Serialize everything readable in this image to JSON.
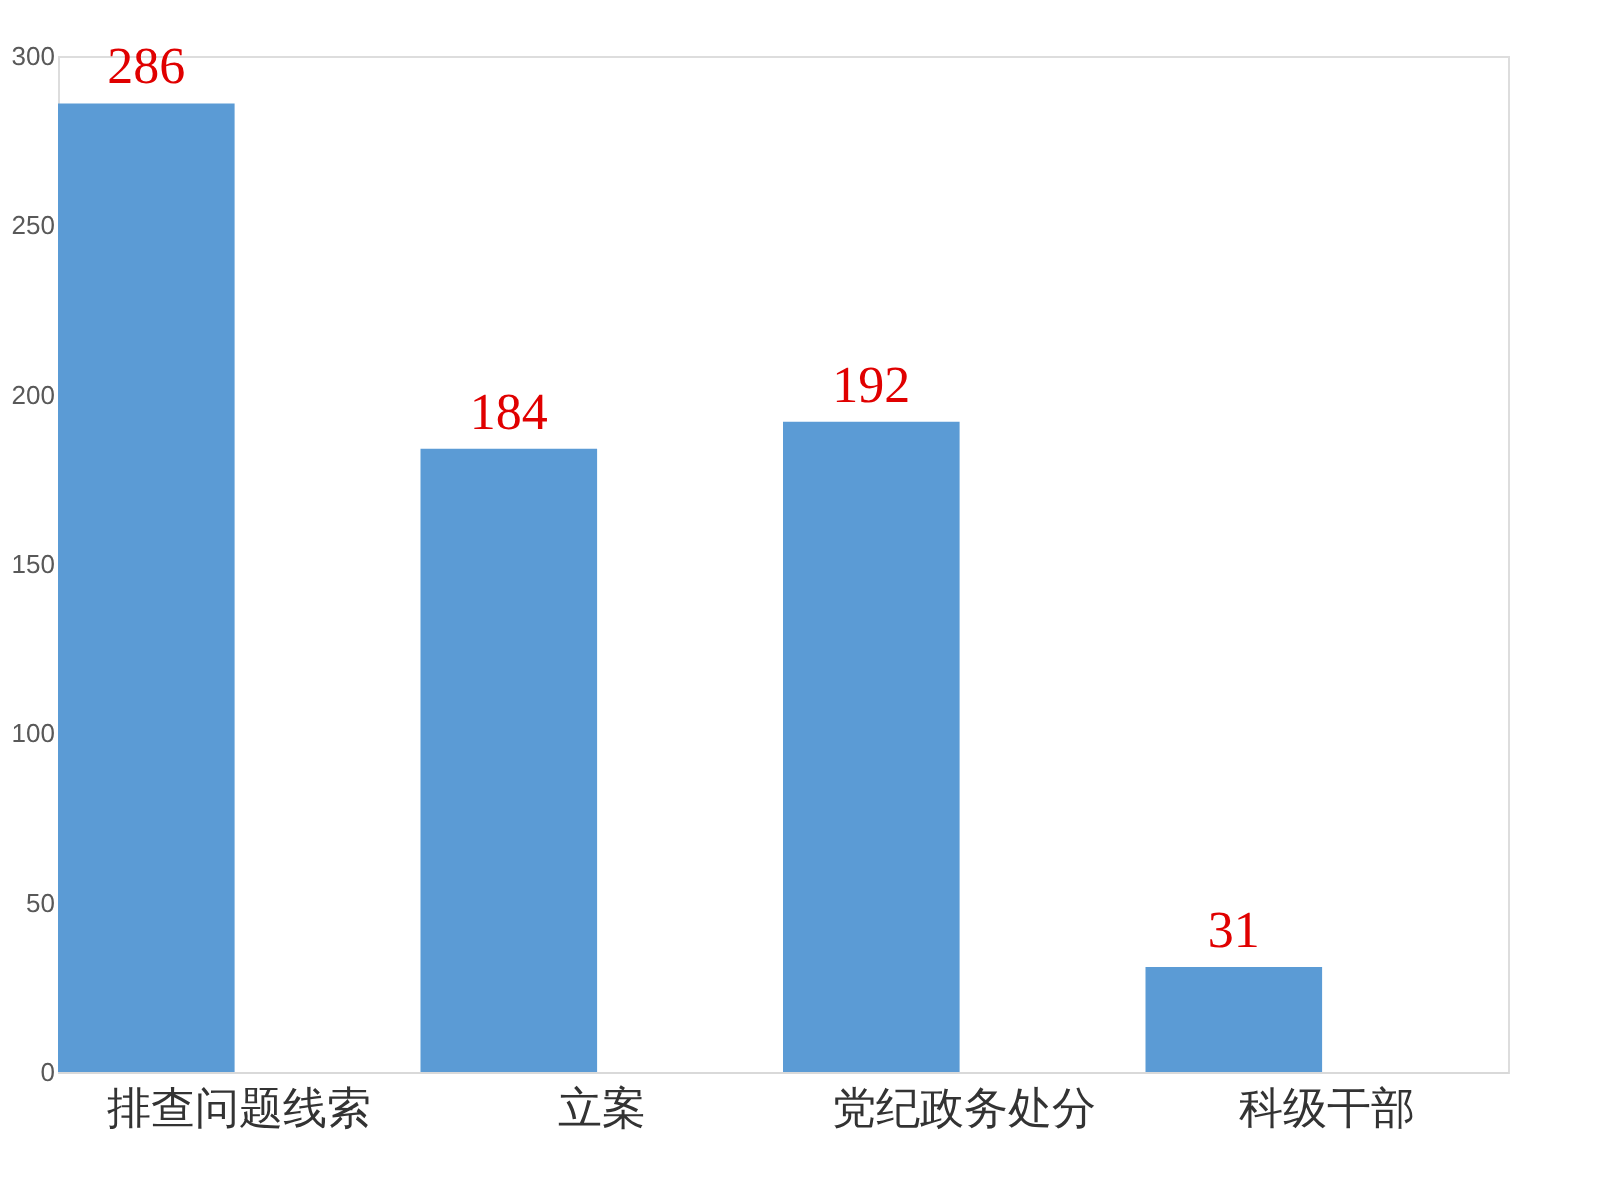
{
  "chart_data": {
    "type": "bar",
    "categories": [
      "排查问题线索",
      "立案",
      "党纪政务处分",
      "科级干部"
    ],
    "values": [
      286,
      184,
      192,
      31
    ],
    "color": "#5b9bd5",
    "ylim": [
      0,
      300
    ],
    "yticks": [
      0,
      50,
      100,
      150,
      200,
      250,
      300
    ],
    "grid": false,
    "data_labels": true
  }
}
